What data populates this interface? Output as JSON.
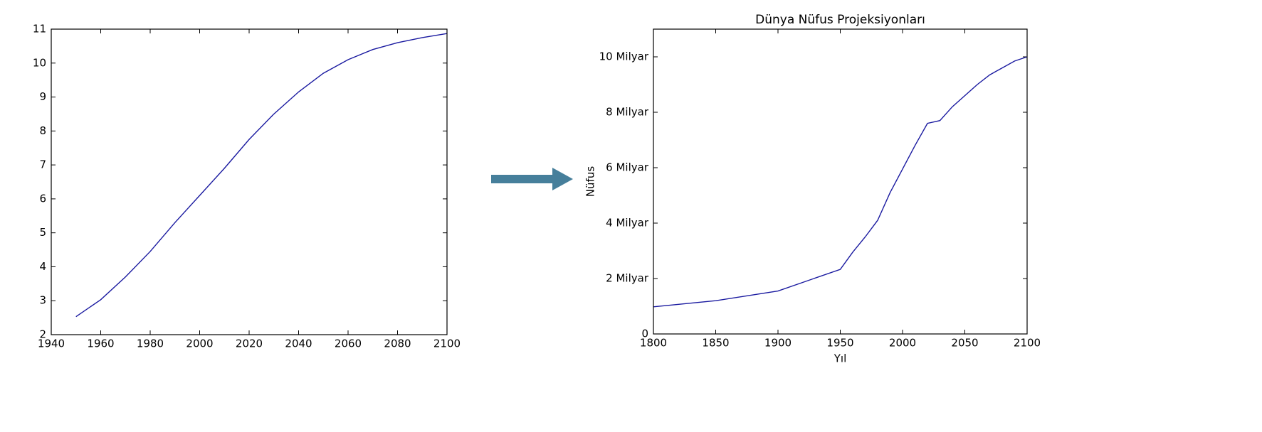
{
  "chart_data": [
    {
      "type": "line",
      "color": "#1a1aa0",
      "x": [
        1950,
        1960,
        1970,
        1980,
        1990,
        2000,
        2010,
        2020,
        2030,
        2040,
        2050,
        2060,
        2070,
        2080,
        2090,
        2100
      ],
      "values": [
        2.53,
        3.03,
        3.7,
        4.45,
        5.3,
        6.1,
        6.9,
        7.75,
        8.5,
        9.15,
        9.7,
        10.1,
        10.4,
        10.6,
        10.75,
        10.87
      ],
      "xlim": [
        1940,
        2100
      ],
      "ylim": [
        2,
        11
      ],
      "xticks": [
        1940,
        1960,
        1980,
        2000,
        2020,
        2040,
        2060,
        2080,
        2100
      ],
      "yticks": [
        2,
        3,
        4,
        5,
        6,
        7,
        8,
        9,
        10,
        11
      ]
    },
    {
      "type": "line",
      "color": "#1a1aa0",
      "title": "Dünya Nüfus Projeksiyonları",
      "xlabel": "Yıl",
      "ylabel": "Nüfus",
      "x": [
        1800,
        1850,
        1900,
        1950,
        1960,
        1970,
        1980,
        1990,
        2000,
        2010,
        2020,
        2030,
        2040,
        2050,
        2060,
        2070,
        2080,
        2090,
        2100
      ],
      "values": [
        0.98,
        1.2,
        1.55,
        2.33,
        2.95,
        3.5,
        4.1,
        5.1,
        5.95,
        6.8,
        7.6,
        7.7,
        8.2,
        8.6,
        9.0,
        9.35,
        9.6,
        9.85,
        10.0
      ],
      "xlim": [
        1800,
        2100
      ],
      "ylim": [
        0,
        11
      ],
      "xticks": [
        1800,
        1850,
        1900,
        1950,
        2000,
        2050,
        2100
      ],
      "yticks": [
        0,
        {
          "value": 2,
          "label": "2 Milyar"
        },
        {
          "value": 4,
          "label": "4 Milyar"
        },
        {
          "value": 6,
          "label": "6 Milyar"
        },
        {
          "value": 8,
          "label": "8 Milyar"
        },
        {
          "value": 10,
          "label": "10 Milyar"
        }
      ]
    }
  ]
}
